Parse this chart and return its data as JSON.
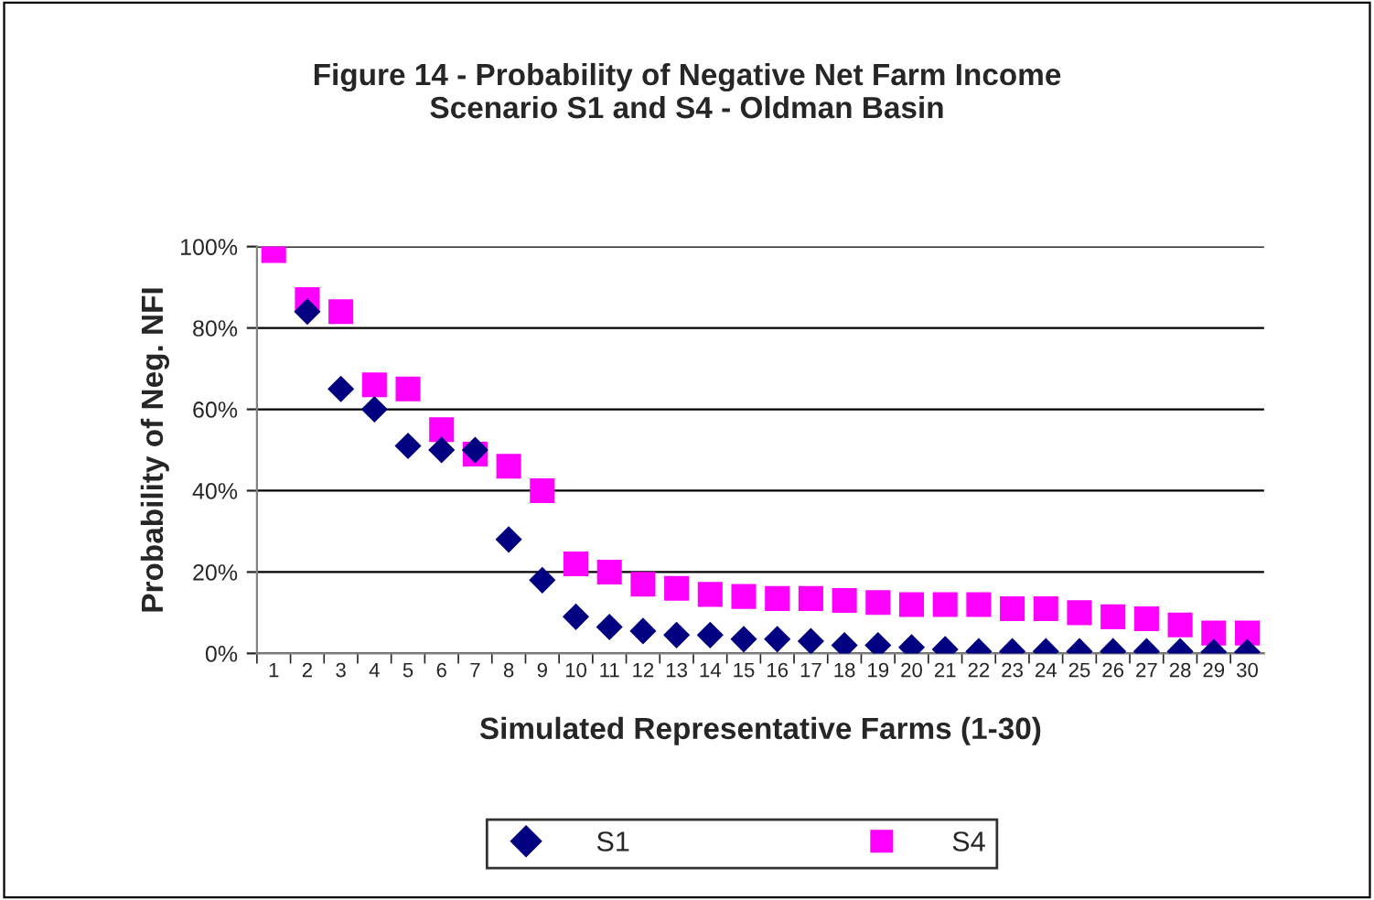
{
  "chart_data": {
    "type": "scatter",
    "title": "Figure 14 - Probability of Negative Net Farm Income\nScenario S1 and S4 - Oldman Basin",
    "xlabel": "Simulated Representative Farms (1-30)",
    "ylabel": "Probability of Neg. NFI",
    "categories": [
      "1",
      "2",
      "3",
      "4",
      "5",
      "6",
      "7",
      "8",
      "9",
      "10",
      "11",
      "12",
      "13",
      "14",
      "15",
      "16",
      "17",
      "18",
      "19",
      "20",
      "21",
      "22",
      "23",
      "24",
      "25",
      "26",
      "27",
      "28",
      "29",
      "30"
    ],
    "series": [
      {
        "name": "S1",
        "color": "#000080",
        "marker": "diamond",
        "values": [
          null,
          84,
          65,
          60,
          51,
          50,
          50,
          28,
          18,
          9,
          6.5,
          5.5,
          4.5,
          4.5,
          3.5,
          3.5,
          3,
          2,
          2,
          1.5,
          1,
          0.5,
          0.5,
          0.5,
          0.5,
          0.5,
          0.5,
          0.5,
          0.3,
          0.3
        ]
      },
      {
        "name": "S4",
        "color": "#ff00ff",
        "marker": "square",
        "values": [
          99,
          87,
          84,
          66,
          65,
          55,
          49,
          46,
          40,
          22,
          20,
          17,
          16,
          14.5,
          14,
          13.5,
          13.5,
          13,
          12.5,
          12,
          12,
          12,
          11,
          11,
          10,
          9,
          8.5,
          7,
          5,
          5
        ]
      }
    ],
    "ylim": [
      0,
      100
    ],
    "yticks": [
      {
        "value": 0,
        "label": "0%"
      },
      {
        "value": 20,
        "label": "20%"
      },
      {
        "value": 40,
        "label": "40%"
      },
      {
        "value": 60,
        "label": "60%"
      },
      {
        "value": 80,
        "label": "80%"
      },
      {
        "value": 100,
        "label": "100%"
      }
    ],
    "grid": "y",
    "legend": "bottom"
  }
}
